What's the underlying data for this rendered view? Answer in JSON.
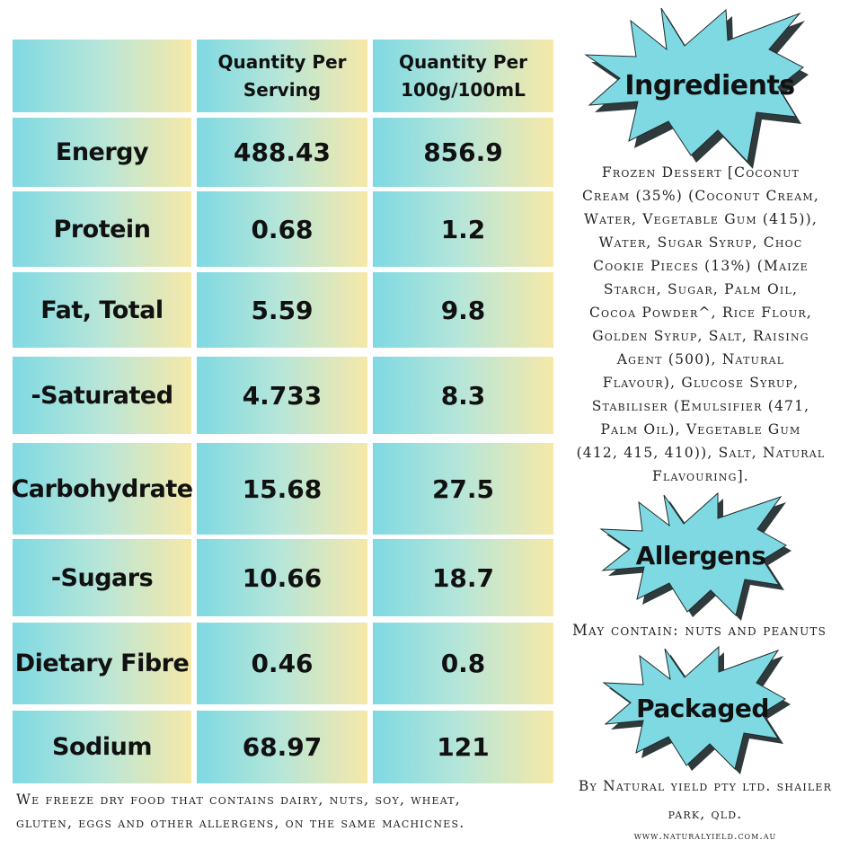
{
  "table": {
    "headers": [
      "",
      "Quantity Per Serving",
      "Quantity Per 100g/100mL"
    ],
    "header_lines": {
      "serving": [
        "Quantity Per",
        "Serving"
      ],
      "per100": [
        "Quantity Per",
        "100g/100mL"
      ]
    },
    "rows": [
      {
        "label": "Energy",
        "serving": "488.43",
        "per100": "856.9"
      },
      {
        "label": "Protein",
        "serving": "0.68",
        "per100": "1.2"
      },
      {
        "label": "Fat, Total",
        "serving": "5.59",
        "per100": "9.8"
      },
      {
        "label": "-Saturated",
        "serving": "4.733",
        "per100": "8.3"
      },
      {
        "label": "Carbohydrate",
        "serving": "15.68",
        "per100": "27.5"
      },
      {
        "label": "-Sugars",
        "serving": "10.66",
        "per100": "18.7"
      },
      {
        "label": "Dietary Fibre",
        "serving": "0.46",
        "per100": "0.8"
      },
      {
        "label": "Sodium",
        "serving": "68.97",
        "per100": "121"
      }
    ]
  },
  "ingredients": {
    "title": "Ingredients",
    "lines": [
      "Frozen Dessert [Coconut",
      "Cream (35%) (Coconut Cream,",
      "Water, Vegetable Gum (415)),",
      "Water, Sugar Syrup, Choc",
      "Cookie Pieces (13%) (Maize",
      "Starch, Sugar, Palm Oil,",
      "Cocoa Powder^, Rice Flour,",
      "Golden Syrup, Salt, Raising",
      "Agent (500), Natural",
      "Flavour), Glucose Syrup,",
      "Stabiliser (Emulsifier (471,",
      "Palm Oil), Vegetable Gum",
      "(412, 415, 410)), Salt, Natural",
      "Flavouring]."
    ]
  },
  "allergens": {
    "title": "Allergens",
    "text": "May contain: nuts and peanuts"
  },
  "packaged": {
    "title": "Packaged",
    "line1": "By Natural yield pty ltd.  shailer",
    "line2": "park, qld.",
    "website": "www.naturalyield.com.au"
  },
  "footer_note": {
    "line1": "We freeze dry food that contains dairy, nuts, soy, wheat,",
    "line2": "gluten, eggs and other allergens, on the same machicnes."
  },
  "colors": {
    "cell_gradient": [
      "#7fd9e3",
      "#b8e6d8",
      "#f6e8a8"
    ],
    "starburst_fill": "#7fd9e3",
    "starburst_shadow": "#2f3a3c"
  }
}
